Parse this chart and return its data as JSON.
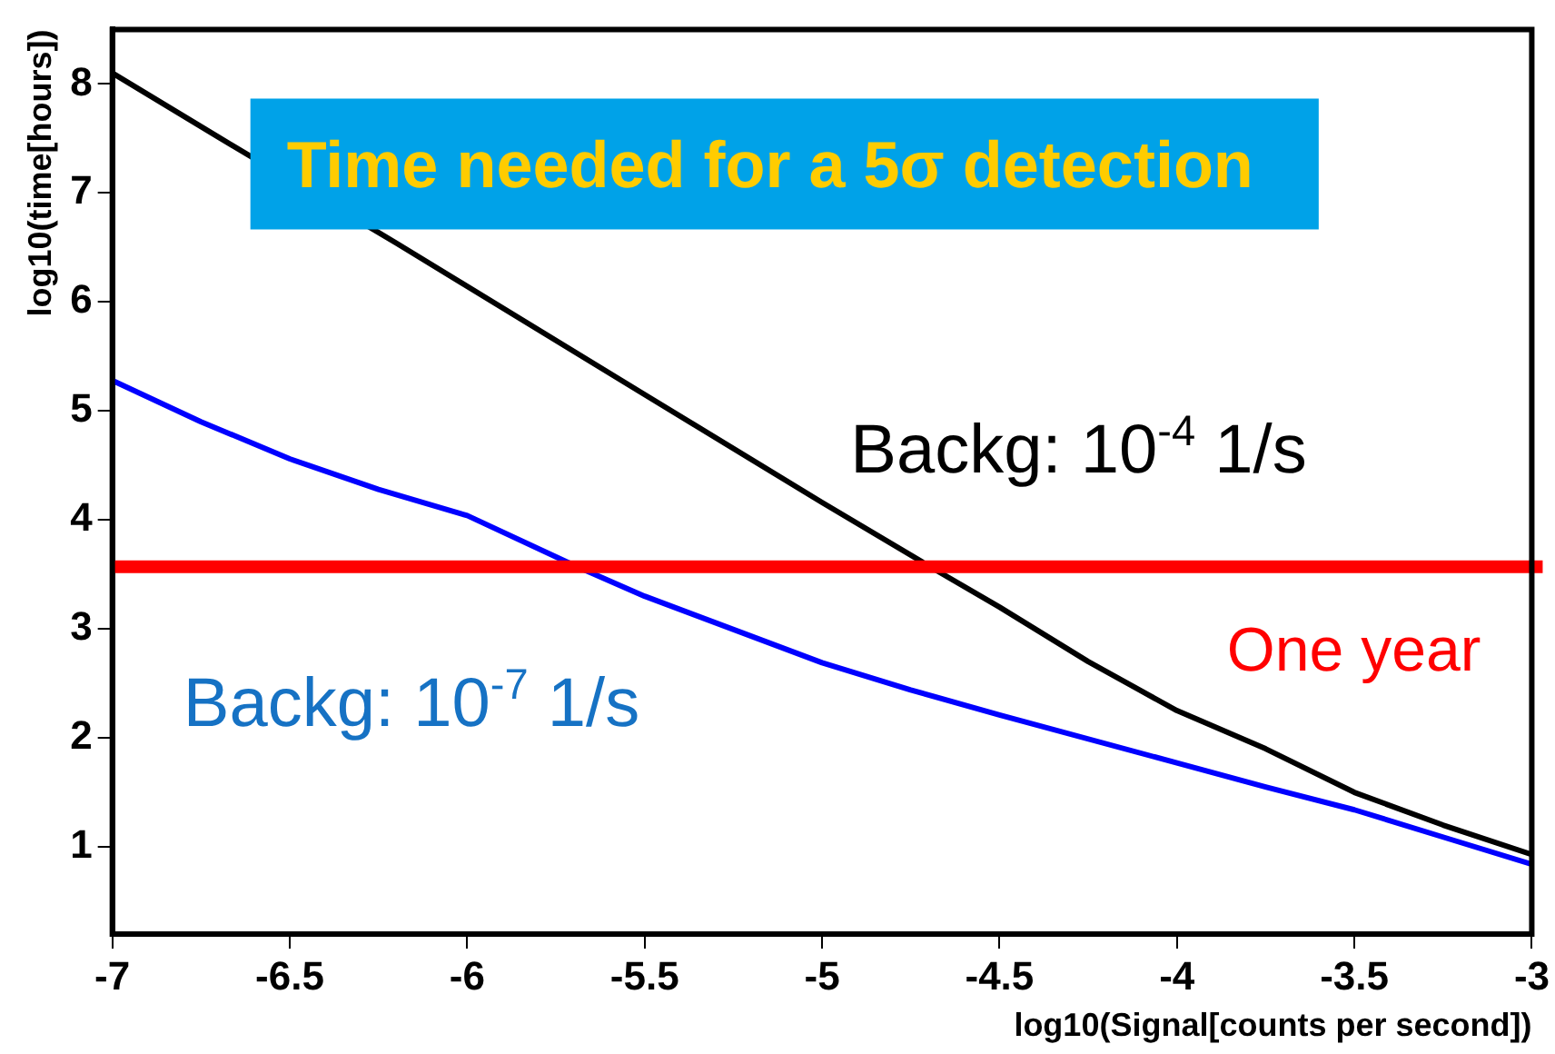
{
  "chart_data": {
    "type": "line",
    "title": "Time needed for a 5σ detection",
    "xlabel": "log10(Signal[counts per second])",
    "ylabel": "log10(time[hours])",
    "xlim": [
      -7,
      -3
    ],
    "xticks": [
      -7,
      -6.5,
      -6,
      -5.5,
      -5,
      -4.5,
      -4,
      -3.5,
      -3
    ],
    "ylim": [
      0.2,
      8.5
    ],
    "yticks": [
      1,
      2,
      3,
      4,
      5,
      6,
      7,
      8
    ],
    "grid": false,
    "legend": false,
    "marker": "none",
    "line_style": "solid",
    "series": [
      {
        "name": "Backg: 10$^{-4}$ 1/s",
        "color": "#000000",
        "x": [
          -7,
          -6.7,
          -6.2,
          -5.5,
          -5,
          -4.69,
          -4.5,
          -4.25,
          -4,
          -3.75,
          -3.5,
          -3.25,
          -3
        ],
        "values": [
          8.1,
          7.51,
          6.54,
          5.15,
          4.16,
          3.56,
          3.2,
          2.7,
          2.25,
          1.9,
          1.5,
          1.2,
          0.93
        ]
      },
      {
        "name": "Backg: 10$^{-7}$ 1/s",
        "color": "#0000ff",
        "x": [
          -7,
          -6.75,
          -6.5,
          -6.25,
          -6,
          -5.69,
          -5.5,
          -5,
          -4.75,
          -4.5,
          -4,
          -3.75,
          -3.5,
          -3.25,
          -3
        ],
        "values": [
          5.28,
          4.9,
          4.56,
          4.28,
          4.04,
          3.57,
          3.3,
          2.69,
          2.44,
          2.21,
          1.77,
          1.55,
          1.34,
          1.09,
          0.84
        ]
      }
    ],
    "ref_lines": [
      {
        "axis": "y",
        "value": 3.57,
        "label": "One year",
        "color": "#ff0000"
      }
    ]
  }
}
